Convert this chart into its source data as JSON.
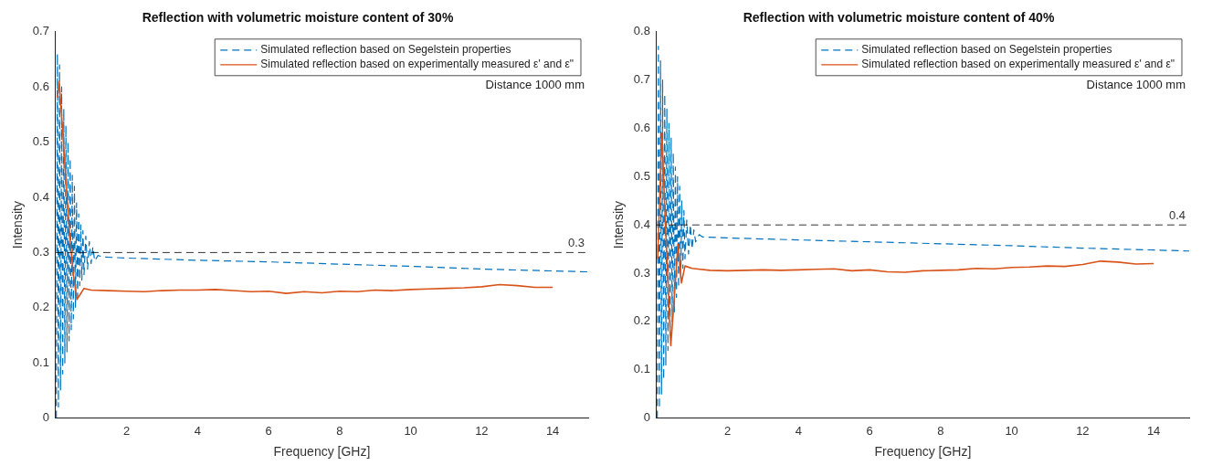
{
  "chart_data": [
    {
      "type": "line",
      "title": "Reflection with volumetric moisture content of 30%",
      "xlabel": "Frequency [GHz]",
      "ylabel": "Intensity",
      "xlim": [
        0,
        15
      ],
      "xticks": [
        2,
        4,
        6,
        8,
        10,
        12,
        14
      ],
      "ylim": [
        0,
        0.7
      ],
      "yticks": [
        0,
        0.1,
        0.2,
        0.3,
        0.4,
        0.5,
        0.6,
        0.7
      ],
      "grid": false,
      "legend": "top right",
      "marker": "none",
      "series": [
        {
          "name": "Simulated reflection based on Segelstein properties",
          "color": "#0072bd",
          "line_style": "dashed",
          "x": [
            0.02,
            0.05,
            0.08,
            0.11,
            0.14,
            0.17,
            0.2,
            0.23,
            0.26,
            0.29,
            0.32,
            0.35,
            0.38,
            0.41,
            0.44,
            0.47,
            0.5,
            0.53,
            0.56,
            0.59,
            0.62,
            0.65,
            0.68,
            0.71,
            0.74,
            0.77,
            0.8,
            0.85,
            0.9,
            0.95,
            1.0,
            1.05,
            1.1,
            1.2,
            1.3,
            2,
            4,
            6,
            8,
            10,
            12,
            15
          ],
          "values": [
            0.0,
            0.66,
            0.02,
            0.64,
            0.05,
            0.6,
            0.08,
            0.56,
            0.1,
            0.53,
            0.12,
            0.5,
            0.14,
            0.47,
            0.16,
            0.44,
            0.18,
            0.42,
            0.2,
            0.39,
            0.22,
            0.37,
            0.24,
            0.35,
            0.25,
            0.34,
            0.26,
            0.33,
            0.27,
            0.32,
            0.28,
            0.31,
            0.285,
            0.295,
            0.292,
            0.29,
            0.286,
            0.283,
            0.279,
            0.275,
            0.27,
            0.265
          ]
        },
        {
          "name": "Simulated reflection based on experimentally measured ε' and ε\"",
          "color": "#d95319",
          "line_style": "solid",
          "x": [
            0.05,
            0.1,
            0.2,
            0.3,
            0.4,
            0.5,
            0.6,
            0.7,
            0.8,
            1,
            1.5,
            2,
            2.5,
            3,
            3.5,
            4,
            4.5,
            5,
            5.5,
            6,
            6.5,
            7,
            7.5,
            8,
            8.5,
            9,
            9.5,
            10,
            10.5,
            11,
            11.5,
            12,
            12.5,
            13,
            13.5,
            14
          ],
          "values": [
            0.58,
            0.61,
            0.52,
            0.42,
            0.33,
            0.26,
            0.215,
            0.225,
            0.235,
            0.232,
            0.231,
            0.23,
            0.229,
            0.231,
            0.232,
            0.232,
            0.233,
            0.231,
            0.229,
            0.23,
            0.226,
            0.229,
            0.227,
            0.23,
            0.229,
            0.232,
            0.231,
            0.233,
            0.234,
            0.235,
            0.236,
            0.238,
            0.242,
            0.24,
            0.237,
            0.237
          ]
        }
      ],
      "ref_lines": [
        {
          "axis": "y",
          "value": 0.3,
          "label": "0.3",
          "color": "#000000",
          "line_style": "dashed"
        }
      ],
      "annotations": [
        "Distance 1000 mm"
      ]
    },
    {
      "type": "line",
      "title": "Reflection with volumetric moisture content of 40%",
      "xlabel": "Frequency [GHz]",
      "ylabel": "Intensity",
      "xlim": [
        0,
        15
      ],
      "xticks": [
        2,
        4,
        6,
        8,
        10,
        12,
        14
      ],
      "ylim": [
        0,
        0.8
      ],
      "yticks": [
        0,
        0.1,
        0.2,
        0.3,
        0.4,
        0.5,
        0.6,
        0.7,
        0.8
      ],
      "grid": false,
      "legend": "top right",
      "marker": "none",
      "series": [
        {
          "name": "Simulated reflection based on Segelstein properties",
          "color": "#0072bd",
          "line_style": "dashed",
          "x": [
            0.02,
            0.05,
            0.08,
            0.11,
            0.14,
            0.17,
            0.2,
            0.23,
            0.26,
            0.29,
            0.32,
            0.35,
            0.38,
            0.41,
            0.44,
            0.47,
            0.5,
            0.53,
            0.56,
            0.59,
            0.62,
            0.65,
            0.68,
            0.71,
            0.74,
            0.77,
            0.8,
            0.85,
            0.9,
            0.95,
            1.0,
            1.05,
            1.1,
            1.2,
            1.3,
            2,
            4,
            6,
            8,
            10,
            12,
            15
          ],
          "values": [
            0.0,
            0.77,
            0.02,
            0.74,
            0.05,
            0.7,
            0.08,
            0.67,
            0.11,
            0.64,
            0.14,
            0.61,
            0.17,
            0.58,
            0.2,
            0.55,
            0.22,
            0.52,
            0.25,
            0.5,
            0.27,
            0.48,
            0.29,
            0.45,
            0.31,
            0.43,
            0.33,
            0.41,
            0.34,
            0.4,
            0.35,
            0.39,
            0.365,
            0.38,
            0.375,
            0.373,
            0.369,
            0.365,
            0.361,
            0.357,
            0.352,
            0.346
          ]
        },
        {
          "name": "Simulated reflection based on experimentally measured ε' and ε\"",
          "color": "#d95319",
          "line_style": "solid",
          "x": [
            0.03,
            0.15,
            0.25,
            0.4,
            0.5,
            0.6,
            0.7,
            0.8,
            1,
            1.5,
            2,
            2.5,
            3,
            3.5,
            4,
            4.5,
            5,
            5.5,
            6,
            6.5,
            7,
            7.5,
            8,
            8.5,
            9,
            9.5,
            10,
            10.5,
            11,
            11.5,
            12,
            12.5,
            13,
            13.5,
            14
          ],
          "values": [
            0.33,
            0.59,
            0.4,
            0.15,
            0.25,
            0.36,
            0.28,
            0.315,
            0.31,
            0.306,
            0.305,
            0.306,
            0.307,
            0.306,
            0.307,
            0.308,
            0.309,
            0.305,
            0.307,
            0.303,
            0.302,
            0.305,
            0.306,
            0.307,
            0.31,
            0.309,
            0.312,
            0.313,
            0.315,
            0.314,
            0.318,
            0.325,
            0.323,
            0.319,
            0.32
          ]
        }
      ],
      "ref_lines": [
        {
          "axis": "y",
          "value": 0.4,
          "label": "0.4",
          "color": "#000000",
          "line_style": "dashed"
        }
      ],
      "annotations": [
        "Distance 1000 mm"
      ]
    }
  ]
}
